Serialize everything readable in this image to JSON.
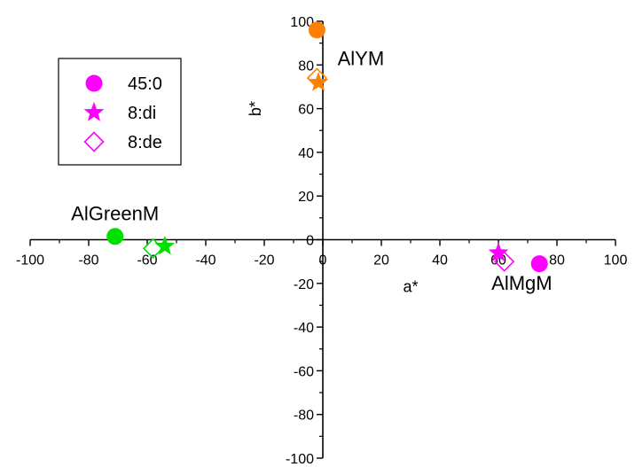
{
  "chart_data": {
    "type": "scatter",
    "xlabel": "a*",
    "ylabel": "b*",
    "xlim": [
      -100,
      100
    ],
    "ylim": [
      -100,
      100
    ],
    "x_ticks": [
      -100,
      -80,
      -60,
      -40,
      -20,
      0,
      20,
      40,
      60,
      80,
      100
    ],
    "y_ticks": [
      -100,
      -80,
      -60,
      -40,
      -20,
      0,
      20,
      40,
      60,
      80,
      100
    ],
    "grid": false,
    "legend_position": "top-left",
    "series": [
      {
        "name": "45:0",
        "marker": "circle",
        "points": [
          {
            "x": -71,
            "y": 1.5,
            "color": "#00e000"
          },
          {
            "x": -2,
            "y": 96,
            "color": "#ff7f00"
          },
          {
            "x": 74,
            "y": -11,
            "color": "#ff00ff"
          }
        ]
      },
      {
        "name": "8:di",
        "marker": "star",
        "points": [
          {
            "x": -54,
            "y": -3,
            "color": "#00e000"
          },
          {
            "x": -1.5,
            "y": 72,
            "color": "#ff7f00"
          },
          {
            "x": 60,
            "y": -6,
            "color": "#ff00ff"
          }
        ]
      },
      {
        "name": "8:de",
        "marker": "diamond",
        "points": [
          {
            "x": -58,
            "y": -4,
            "color": "#00e000"
          },
          {
            "x": -2,
            "y": 74,
            "color": "#ff7f00"
          },
          {
            "x": 62,
            "y": -10,
            "color": "#ff00ff"
          }
        ]
      }
    ],
    "annotations": [
      {
        "text": "AlGreenM",
        "x": -71,
        "y": 9
      },
      {
        "text": "AlYM",
        "x": 13,
        "y": 80
      },
      {
        "text": "AlMgM",
        "x": 68,
        "y": -23
      }
    ],
    "legend_color": "#ff00ff"
  }
}
